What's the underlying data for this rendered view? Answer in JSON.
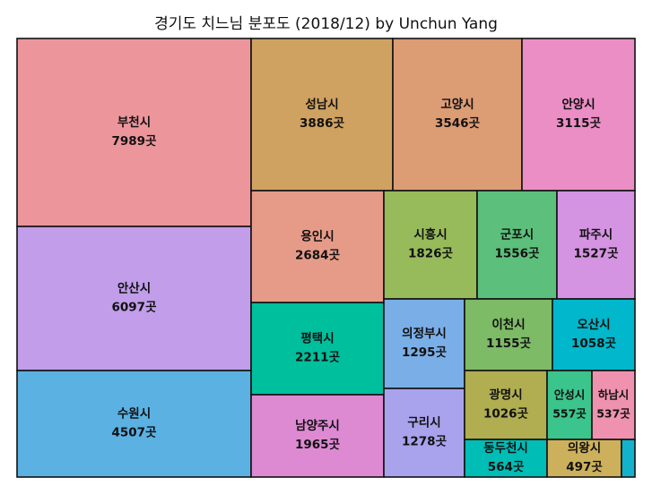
{
  "chart_data": {
    "type": "treemap",
    "title": "경기도 치느님 분포도 (2018/12) by Unchun Yang",
    "unit": "곳",
    "data": [
      {
        "name": "부천시",
        "value": 7989,
        "label": "7989곳",
        "color": "#ec969b"
      },
      {
        "name": "안산시",
        "value": 6097,
        "label": "6097곳",
        "color": "#c19dea"
      },
      {
        "name": "수원시",
        "value": 4507,
        "label": "4507곳",
        "color": "#5bb1e2"
      },
      {
        "name": "성남시",
        "value": 3886,
        "label": "3886곳",
        "color": "#cfa262"
      },
      {
        "name": "고양시",
        "value": 3546,
        "label": "3546곳",
        "color": "#dc9c74"
      },
      {
        "name": "안양시",
        "value": 3115,
        "label": "3115곳",
        "color": "#eb8ec5"
      },
      {
        "name": "용인시",
        "value": 2684,
        "label": "2684곳",
        "color": "#e69b88"
      },
      {
        "name": "평택시",
        "value": 2211,
        "label": "2211곳",
        "color": "#00bf9c"
      },
      {
        "name": "남양주시",
        "value": 1965,
        "label": "1965곳",
        "color": "#dd8ad3"
      },
      {
        "name": "시흥시",
        "value": 1826,
        "label": "1826곳",
        "color": "#97bb5a"
      },
      {
        "name": "군포시",
        "value": 1556,
        "label": "1556곳",
        "color": "#5cbf7b"
      },
      {
        "name": "파주시",
        "value": 1527,
        "label": "1527곳",
        "color": "#d494e2"
      },
      {
        "name": "의정부시",
        "value": 1295,
        "label": "1295곳",
        "color": "#7aaee7"
      },
      {
        "name": "구리시",
        "value": 1278,
        "label": "1278곳",
        "color": "#a9a2ed"
      },
      {
        "name": "이천시",
        "value": 1155,
        "label": "1155곳",
        "color": "#7dbb66"
      },
      {
        "name": "오산시",
        "value": 1058,
        "label": "1058곳",
        "color": "#00b7cc"
      },
      {
        "name": "광명시",
        "value": 1026,
        "label": "1026곳",
        "color": "#b0ae50"
      },
      {
        "name": "동두천시",
        "value": 564,
        "label": "564곳",
        "color": "#00bdb6"
      },
      {
        "name": "안성시",
        "value": 557,
        "label": "557곳",
        "color": "#3bc48b"
      },
      {
        "name": "하남시",
        "value": 537,
        "label": "537곳",
        "color": "#ee92b0"
      },
      {
        "name": "의왕시",
        "value": 497,
        "label": "497곳",
        "color": "#ccb05c"
      },
      {
        "name": "",
        "value": 90,
        "label": "",
        "color": "#12b2cd"
      }
    ]
  }
}
